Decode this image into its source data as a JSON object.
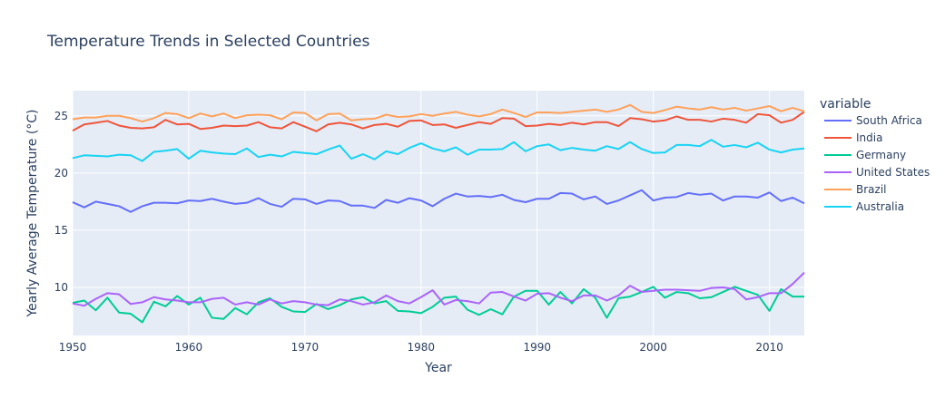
{
  "chart_data": {
    "type": "line",
    "title": "Temperature Trends in Selected Countries",
    "xlabel": "Year",
    "ylabel": "Yearly Average Temperature (°C)",
    "xlim": [
      1950,
      2013
    ],
    "ylim": [
      5.8,
      27.2
    ],
    "x_ticks": [
      1950,
      1960,
      1970,
      1980,
      1990,
      2000,
      2010
    ],
    "y_ticks": [
      10,
      15,
      20,
      25
    ],
    "legend_title": "variable",
    "legend_position": "right",
    "grid": true,
    "x": [
      1950,
      1951,
      1952,
      1953,
      1954,
      1955,
      1956,
      1957,
      1958,
      1959,
      1960,
      1961,
      1962,
      1963,
      1964,
      1965,
      1966,
      1967,
      1968,
      1969,
      1970,
      1971,
      1972,
      1973,
      1974,
      1975,
      1976,
      1977,
      1978,
      1979,
      1980,
      1981,
      1982,
      1983,
      1984,
      1985,
      1986,
      1987,
      1988,
      1989,
      1990,
      1991,
      1992,
      1993,
      1994,
      1995,
      1996,
      1997,
      1998,
      1999,
      2000,
      2001,
      2002,
      2003,
      2004,
      2005,
      2006,
      2007,
      2008,
      2009,
      2010,
      2011,
      2012,
      2013
    ],
    "series": [
      {
        "name": "South Africa",
        "color": "#636efa",
        "values": [
          17.45,
          17.0,
          17.5,
          17.3,
          17.1,
          16.6,
          17.1,
          17.4,
          17.4,
          17.35,
          17.6,
          17.55,
          17.75,
          17.5,
          17.3,
          17.4,
          17.8,
          17.3,
          17.05,
          17.75,
          17.7,
          17.3,
          17.6,
          17.55,
          17.15,
          17.15,
          16.95,
          17.65,
          17.4,
          17.8,
          17.6,
          17.1,
          17.75,
          18.2,
          17.95,
          18.0,
          17.9,
          18.1,
          17.65,
          17.45,
          17.75,
          17.75,
          18.25,
          18.2,
          17.7,
          17.95,
          17.3,
          17.6,
          18.05,
          18.5,
          17.6,
          17.85,
          17.9,
          18.25,
          18.1,
          18.2,
          17.6,
          17.95,
          17.95,
          17.85,
          18.3,
          17.55,
          17.85,
          17.35
        ]
      },
      {
        "name": "India",
        "color": "#EF553B",
        "values": [
          23.7,
          24.25,
          24.4,
          24.55,
          24.15,
          23.95,
          23.9,
          24.0,
          24.65,
          24.25,
          24.3,
          23.85,
          23.95,
          24.15,
          24.1,
          24.15,
          24.45,
          24.0,
          23.9,
          24.45,
          24.05,
          23.65,
          24.25,
          24.4,
          24.25,
          23.9,
          24.2,
          24.3,
          24.05,
          24.55,
          24.6,
          24.2,
          24.25,
          23.95,
          24.2,
          24.45,
          24.3,
          24.8,
          24.75,
          24.1,
          24.15,
          24.3,
          24.2,
          24.4,
          24.25,
          24.45,
          24.45,
          24.1,
          24.8,
          24.7,
          24.5,
          24.6,
          24.95,
          24.65,
          24.65,
          24.5,
          24.75,
          24.65,
          24.4,
          25.15,
          25.05,
          24.4,
          24.65,
          25.35
        ]
      },
      {
        "name": "Germany",
        "color": "#00cc96",
        "values": [
          8.65,
          8.85,
          8.0,
          9.1,
          7.8,
          7.7,
          6.95,
          8.75,
          8.35,
          9.25,
          8.5,
          9.1,
          7.35,
          7.25,
          8.2,
          7.65,
          8.7,
          9.05,
          8.3,
          7.9,
          7.85,
          8.55,
          8.1,
          8.45,
          8.95,
          9.15,
          8.6,
          8.8,
          7.95,
          7.9,
          7.75,
          8.3,
          9.1,
          9.2,
          8.05,
          7.6,
          8.1,
          7.65,
          9.2,
          9.7,
          9.7,
          8.5,
          9.6,
          8.6,
          9.85,
          9.1,
          7.35,
          9.05,
          9.2,
          9.6,
          10.05,
          9.1,
          9.6,
          9.5,
          9.05,
          9.15,
          9.6,
          10.05,
          9.7,
          9.35,
          7.95,
          9.85,
          9.2,
          9.2
        ]
      },
      {
        "name": "United States",
        "color": "#ab63fa",
        "values": [
          8.6,
          8.4,
          9.0,
          9.5,
          9.4,
          8.55,
          8.7,
          9.15,
          8.95,
          8.85,
          8.7,
          8.7,
          9.0,
          9.1,
          8.5,
          8.7,
          8.5,
          8.95,
          8.6,
          8.8,
          8.7,
          8.5,
          8.45,
          8.95,
          8.8,
          8.5,
          8.7,
          9.3,
          8.8,
          8.6,
          9.15,
          9.75,
          8.5,
          8.9,
          8.8,
          8.6,
          9.55,
          9.6,
          9.2,
          8.85,
          9.45,
          9.5,
          9.1,
          8.8,
          9.3,
          9.3,
          8.85,
          9.3,
          10.15,
          9.6,
          9.7,
          9.8,
          9.8,
          9.75,
          9.7,
          9.95,
          10.0,
          9.85,
          8.95,
          9.15,
          9.5,
          9.5,
          10.3,
          11.3
        ]
      },
      {
        "name": "Brazil",
        "color": "#FFA15A",
        "values": [
          24.7,
          24.85,
          24.85,
          25.0,
          25.0,
          24.8,
          24.5,
          24.8,
          25.25,
          25.15,
          24.8,
          25.2,
          24.95,
          25.2,
          24.8,
          25.05,
          25.1,
          25.05,
          24.7,
          25.3,
          25.25,
          24.6,
          25.15,
          25.2,
          24.6,
          24.7,
          24.75,
          25.1,
          24.9,
          24.95,
          25.15,
          25.0,
          25.2,
          25.35,
          25.1,
          24.95,
          25.15,
          25.55,
          25.25,
          24.9,
          25.3,
          25.3,
          25.25,
          25.35,
          25.45,
          25.55,
          25.35,
          25.55,
          25.95,
          25.35,
          25.25,
          25.5,
          25.8,
          25.65,
          25.55,
          25.75,
          25.55,
          25.7,
          25.45,
          25.65,
          25.85,
          25.4,
          25.7,
          25.4
        ]
      },
      {
        "name": "Australia",
        "color": "#19d3f3",
        "values": [
          21.3,
          21.55,
          21.5,
          21.45,
          21.6,
          21.55,
          21.05,
          21.85,
          21.95,
          22.1,
          21.25,
          21.95,
          21.8,
          21.7,
          21.65,
          22.15,
          21.4,
          21.6,
          21.45,
          21.85,
          21.75,
          21.65,
          22.05,
          22.4,
          21.25,
          21.65,
          21.2,
          21.9,
          21.65,
          22.2,
          22.6,
          22.15,
          21.9,
          22.25,
          21.6,
          22.05,
          22.05,
          22.1,
          22.7,
          21.9,
          22.35,
          22.5,
          22.0,
          22.2,
          22.05,
          21.95,
          22.35,
          22.1,
          22.7,
          22.1,
          21.75,
          21.8,
          22.45,
          22.45,
          22.35,
          22.9,
          22.3,
          22.45,
          22.25,
          22.65,
          22.05,
          21.8,
          22.05,
          22.15
        ]
      }
    ]
  }
}
